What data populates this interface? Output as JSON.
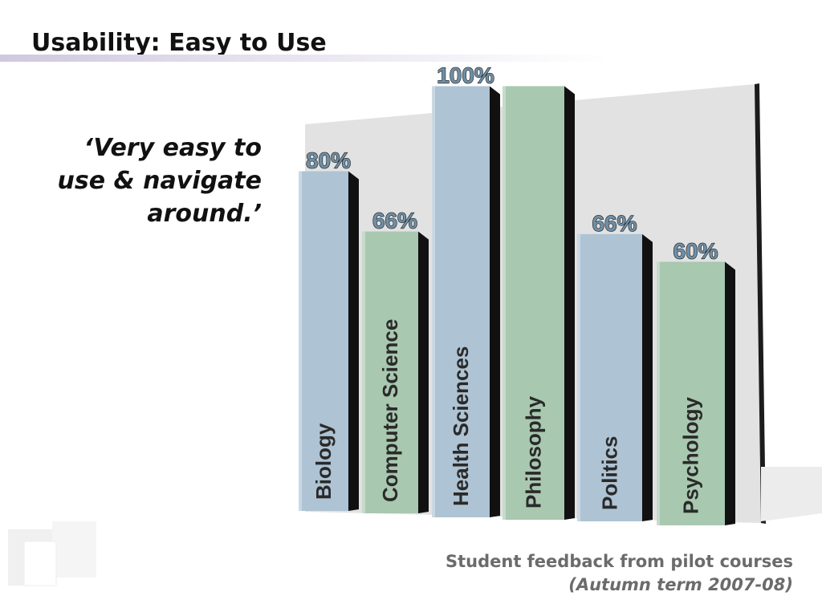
{
  "slide": {
    "title": "Usability: Easy to Use",
    "quote": "‘Very easy to\nuse & navigate\naround.’",
    "caption_line1": "Student feedback from pilot courses",
    "caption_line2": "(Autumn term 2007-08)"
  },
  "colors": {
    "blue_bar": "#aec3d3",
    "green_bar": "#a8c8b0",
    "bar_shadow": "#111111",
    "wall": "#e2e2e2",
    "label_text": "#2a2a2a",
    "value_text": "#6f8fa6"
  },
  "chart_data": {
    "type": "bar",
    "categories": [
      "Biology",
      "Computer Science",
      "Health Sciences",
      "Philosophy",
      "Politics",
      "Psychology"
    ],
    "values": [
      80,
      66,
      100,
      100,
      66,
      60
    ],
    "data_labels": [
      "80%",
      "66%",
      "100%",
      "",
      "66%",
      "60%"
    ],
    "bar_colors": [
      "blue",
      "green",
      "blue",
      "green",
      "blue",
      "green"
    ],
    "value_unit": "%",
    "ylim": [
      0,
      100
    ],
    "legend": false,
    "grid": false,
    "style": "3d"
  }
}
